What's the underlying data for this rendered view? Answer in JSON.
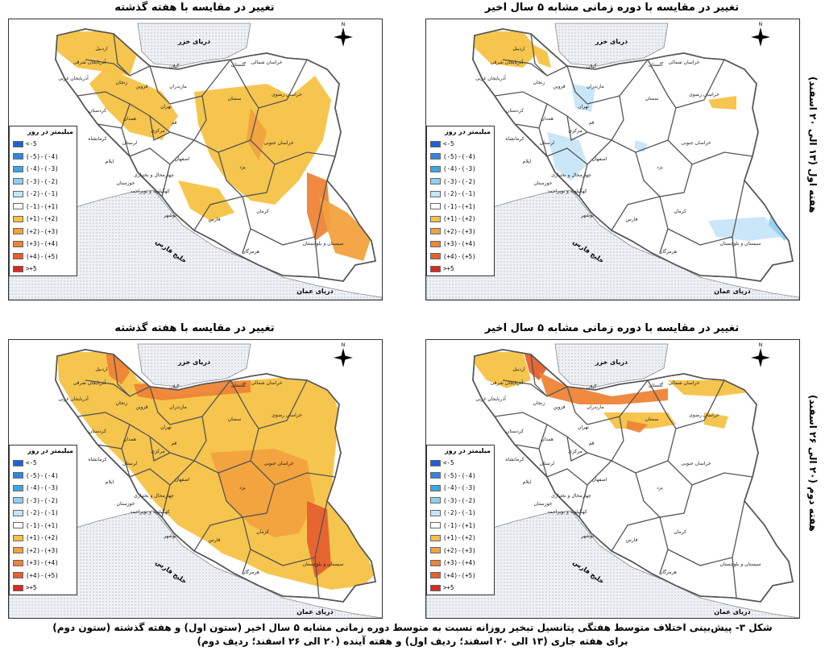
{
  "panels": [
    {
      "id": "w1-last-week",
      "title": "تغییر در مقایسه با هفته گذشته"
    },
    {
      "id": "w1-five-year",
      "title": "تغییر در مقایسه با دوره زمانی مشابه ۵ سال اخیر"
    },
    {
      "id": "w2-last-week",
      "title": "تغییر در مقایسه با هفته گذشته"
    },
    {
      "id": "w2-five-year",
      "title": "تغییر در مقایسه با دوره زمانی مشابه ۵ سال اخیر"
    }
  ],
  "row_labels": {
    "row1": "هفته اول (۱۳ الی ۲۰ اسفند)",
    "row2": "هفته دوم (۲۰ الی ۲۶ اسفند)"
  },
  "legend": {
    "title": "میلیمتر در روز",
    "items": [
      {
        "label": "<-5",
        "color": "#1f5fd6"
      },
      {
        "label": "(-5)-(-4)",
        "color": "#2f86e8"
      },
      {
        "label": "(-4)-(-3)",
        "color": "#3aa7ea"
      },
      {
        "label": "(-3)-(-2)",
        "color": "#8fd0f2"
      },
      {
        "label": "(-2)-(-1)",
        "color": "#c6e6f8"
      },
      {
        "label": "(-1)-(+1)",
        "color": "#ffffff"
      },
      {
        "label": "(+1)-(+2)",
        "color": "#f6c244"
      },
      {
        "label": "(+2)-(+3)",
        "color": "#f2a23e"
      },
      {
        "label": "(+3)-(+4)",
        "color": "#ee8436"
      },
      {
        "label": "(+4)-(+5)",
        "color": "#e5602e"
      },
      {
        "label": ">+5",
        "color": "#d92a22"
      }
    ]
  },
  "map_labels": {
    "caspian": "دریای خزر",
    "oman": "دریای عمان",
    "gulf": "خلیج فارس",
    "provinces": [
      {
        "name": "گیلان"
      },
      {
        "name": "مازندران"
      },
      {
        "name": "گلستان"
      },
      {
        "name": "خراسان شمالی"
      },
      {
        "name": "خراسان رضوی"
      },
      {
        "name": "سمنان"
      },
      {
        "name": "تهران"
      },
      {
        "name": "قزوین"
      },
      {
        "name": "زنجان"
      },
      {
        "name": "اردبیل"
      },
      {
        "name": "آذربایجان شرقی"
      },
      {
        "name": "آذربایجان غربی"
      },
      {
        "name": "کردستان"
      },
      {
        "name": "همدان"
      },
      {
        "name": "مرکزی"
      },
      {
        "name": "قم"
      },
      {
        "name": "کرمانشاه"
      },
      {
        "name": "لرستان"
      },
      {
        "name": "ایلام"
      },
      {
        "name": "خوزستان"
      },
      {
        "name": "اصفهان"
      },
      {
        "name": "یزد"
      },
      {
        "name": "خراسان جنوبی"
      },
      {
        "name": "کرمان"
      },
      {
        "name": "فارس"
      },
      {
        "name": "بوشهر"
      },
      {
        "name": "هرمزگان"
      },
      {
        "name": "سیستان و بلوچستان"
      },
      {
        "name": "چهارمحال و بختیاری"
      },
      {
        "name": "کهگیلویه و بویراحمد"
      }
    ]
  },
  "caption": {
    "line1": "شکل ۳- پیش‌بینی اختلاف متوسط هفتگی پتانسیل تبخیر روزانه نسبت به متوسط دوره زمانی مشابه ۵ سال اخیر (ستون اول) و هفته گذشته (ستون دوم)",
    "line2": "برای هفته جاری (۱۳ الی ۲۰ اسفند؛ ردیف اول) و هفته آینده (۲۰ الی ۲۶ اسفند؛ ردیف دوم)"
  }
}
